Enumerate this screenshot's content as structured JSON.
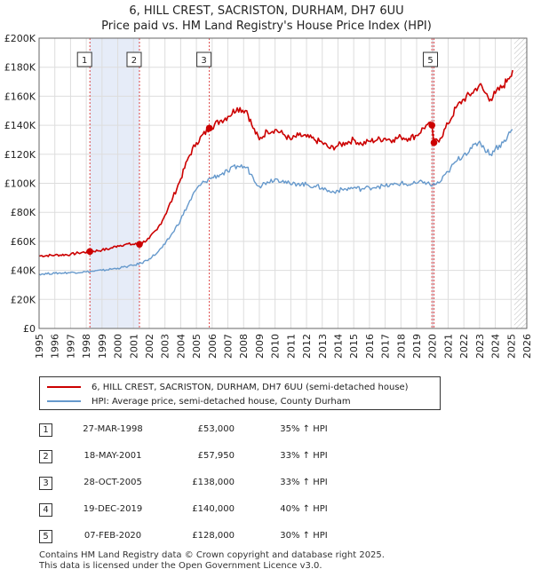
{
  "chart_data": {
    "type": "line",
    "title": "6, HILL CREST, SACRISTON, DURHAM, DH7 6UU",
    "subtitle": "Price paid vs. HM Land Registry's House Price Index (HPI)",
    "xlim": [
      1995,
      2026
    ],
    "ylim": [
      0,
      200000
    ],
    "x_ticks": [
      "1995",
      "1996",
      "1997",
      "1998",
      "1999",
      "2000",
      "2001",
      "2002",
      "2003",
      "2004",
      "2005",
      "2006",
      "2007",
      "2008",
      "2009",
      "2010",
      "2011",
      "2012",
      "2013",
      "2014",
      "2015",
      "2016",
      "2017",
      "2018",
      "2019",
      "2020",
      "2021",
      "2022",
      "2023",
      "2024",
      "2025",
      "2026"
    ],
    "y_ticks": [
      {
        "value": 0,
        "label": "£0"
      },
      {
        "value": 20000,
        "label": "£20K"
      },
      {
        "value": 40000,
        "label": "£40K"
      },
      {
        "value": 60000,
        "label": "£60K"
      },
      {
        "value": 80000,
        "label": "£80K"
      },
      {
        "value": 100000,
        "label": "£100K"
      },
      {
        "value": 120000,
        "label": "£120K"
      },
      {
        "value": 140000,
        "label": "£140K"
      },
      {
        "value": 160000,
        "label": "£160K"
      },
      {
        "value": 180000,
        "label": "£180K"
      },
      {
        "value": 200000,
        "label": "£200K"
      }
    ],
    "grid": true,
    "series": [
      {
        "name": "6, HILL CREST, SACRISTON, DURHAM, DH7 6UU (semi-detached house)",
        "color": "#cc0000",
        "points": [
          [
            1995.0,
            50000
          ],
          [
            1996.0,
            50500
          ],
          [
            1997.0,
            51000
          ],
          [
            1997.5,
            52000
          ],
          [
            1998.23,
            53000
          ],
          [
            1999.0,
            54000
          ],
          [
            1999.5,
            55000
          ],
          [
            2000.0,
            57000
          ],
          [
            2000.5,
            58000
          ],
          [
            2001.38,
            57950
          ],
          [
            2002.0,
            62000
          ],
          [
            2002.5,
            68000
          ],
          [
            2003.0,
            78000
          ],
          [
            2003.5,
            90000
          ],
          [
            2004.0,
            103000
          ],
          [
            2004.5,
            118000
          ],
          [
            2005.0,
            128000
          ],
          [
            2005.82,
            138000
          ],
          [
            2006.5,
            143000
          ],
          [
            2007.0,
            146000
          ],
          [
            2007.6,
            152000
          ],
          [
            2008.2,
            150000
          ],
          [
            2008.6,
            138000
          ],
          [
            2009.0,
            130000
          ],
          [
            2009.5,
            136000
          ],
          [
            2010.0,
            137000
          ],
          [
            2010.5,
            134000
          ],
          [
            2011.0,
            130000
          ],
          [
            2011.5,
            133000
          ],
          [
            2012.0,
            132000
          ],
          [
            2012.5,
            130000
          ],
          [
            2013.0,
            128000
          ],
          [
            2013.5,
            124000
          ],
          [
            2014.0,
            126000
          ],
          [
            2014.5,
            128000
          ],
          [
            2015.0,
            130000
          ],
          [
            2015.5,
            127000
          ],
          [
            2016.0,
            129000
          ],
          [
            2016.5,
            130000
          ],
          [
            2017.0,
            131000
          ],
          [
            2017.5,
            130000
          ],
          [
            2018.0,
            132000
          ],
          [
            2018.5,
            131000
          ],
          [
            2019.0,
            133000
          ],
          [
            2019.6,
            140000
          ],
          [
            2019.97,
            140000
          ],
          [
            2020.1,
            128000
          ],
          [
            2020.5,
            131000
          ],
          [
            2021.0,
            141000
          ],
          [
            2021.5,
            152000
          ],
          [
            2022.0,
            158000
          ],
          [
            2022.5,
            162000
          ],
          [
            2023.0,
            168000
          ],
          [
            2023.3,
            163000
          ],
          [
            2023.7,
            158000
          ],
          [
            2024.0,
            162000
          ],
          [
            2024.5,
            167000
          ],
          [
            2024.8,
            172000
          ],
          [
            2025.1,
            178000
          ]
        ]
      },
      {
        "name": "HPI: Average price, semi-detached house, County Durham",
        "color": "#6699cc",
        "points": [
          [
            1995.0,
            37500
          ],
          [
            1996.0,
            38000
          ],
          [
            1997.0,
            38500
          ],
          [
            1998.0,
            39000
          ],
          [
            1999.0,
            40000
          ],
          [
            2000.0,
            41500
          ],
          [
            2000.5,
            42500
          ],
          [
            2001.0,
            43500
          ],
          [
            2001.5,
            45000
          ],
          [
            2002.0,
            48000
          ],
          [
            2002.5,
            52000
          ],
          [
            2003.0,
            58000
          ],
          [
            2003.5,
            66000
          ],
          [
            2004.0,
            75000
          ],
          [
            2004.5,
            86000
          ],
          [
            2005.0,
            96000
          ],
          [
            2005.5,
            101000
          ],
          [
            2006.0,
            104000
          ],
          [
            2006.5,
            106000
          ],
          [
            2007.0,
            108000
          ],
          [
            2007.6,
            112000
          ],
          [
            2008.2,
            111000
          ],
          [
            2008.6,
            104000
          ],
          [
            2009.0,
            98000
          ],
          [
            2009.5,
            101000
          ],
          [
            2010.0,
            103000
          ],
          [
            2010.5,
            102000
          ],
          [
            2011.0,
            99000
          ],
          [
            2011.5,
            100000
          ],
          [
            2012.0,
            99000
          ],
          [
            2012.5,
            98000
          ],
          [
            2013.0,
            97000
          ],
          [
            2013.5,
            94000
          ],
          [
            2014.0,
            95000
          ],
          [
            2014.5,
            96000
          ],
          [
            2015.0,
            97000
          ],
          [
            2015.5,
            96000
          ],
          [
            2016.0,
            97000
          ],
          [
            2016.5,
            98000
          ],
          [
            2017.0,
            98000
          ],
          [
            2017.5,
            99000
          ],
          [
            2018.0,
            100000
          ],
          [
            2018.5,
            99000
          ],
          [
            2019.0,
            100000
          ],
          [
            2019.5,
            101000
          ],
          [
            2020.0,
            98500
          ],
          [
            2020.5,
            101000
          ],
          [
            2021.0,
            108000
          ],
          [
            2021.5,
            115000
          ],
          [
            2022.0,
            120000
          ],
          [
            2022.5,
            124000
          ],
          [
            2023.0,
            129000
          ],
          [
            2023.3,
            124000
          ],
          [
            2023.7,
            120000
          ],
          [
            2024.0,
            124000
          ],
          [
            2024.5,
            128000
          ],
          [
            2024.8,
            133000
          ],
          [
            2025.1,
            137000
          ]
        ]
      }
    ],
    "shaded_periods": [
      [
        1998.23,
        2001.38
      ],
      [
        2019.97,
        2020.1
      ]
    ],
    "hatched_from": 2025.2,
    "markers": [
      {
        "label": "1",
        "x": 1998.23,
        "y": 53000
      },
      {
        "label": "2",
        "x": 2001.38,
        "y": 57950
      },
      {
        "label": "3",
        "x": 2005.82,
        "y": 138000
      },
      {
        "label": "4",
        "x": 2019.97,
        "y": 140000
      },
      {
        "label": "5",
        "x": 2020.1,
        "y": 128000
      }
    ],
    "marker_boxes_shown": [
      "1",
      "2",
      "3",
      "5"
    ]
  },
  "legend": {
    "red_label": "6, HILL CREST, SACRISTON, DURHAM, DH7 6UU (semi-detached house)",
    "blue_label": "HPI: Average price, semi-detached house, County Durham",
    "red_color": "#cc0000",
    "blue_color": "#6699cc"
  },
  "transactions": [
    {
      "num": "1",
      "date": "27-MAR-1998",
      "price": "£53,000",
      "hpi": "35% ↑ HPI"
    },
    {
      "num": "2",
      "date": "18-MAY-2001",
      "price": "£57,950",
      "hpi": "33% ↑ HPI"
    },
    {
      "num": "3",
      "date": "28-OCT-2005",
      "price": "£138,000",
      "hpi": "33% ↑ HPI"
    },
    {
      "num": "4",
      "date": "19-DEC-2019",
      "price": "£140,000",
      "hpi": "40% ↑ HPI"
    },
    {
      "num": "5",
      "date": "07-FEB-2020",
      "price": "£128,000",
      "hpi": "30% ↑ HPI"
    }
  ],
  "footer": {
    "line1": "Contains HM Land Registry data © Crown copyright and database right 2025.",
    "line2": "This data is licensed under the Open Government Licence v3.0."
  }
}
